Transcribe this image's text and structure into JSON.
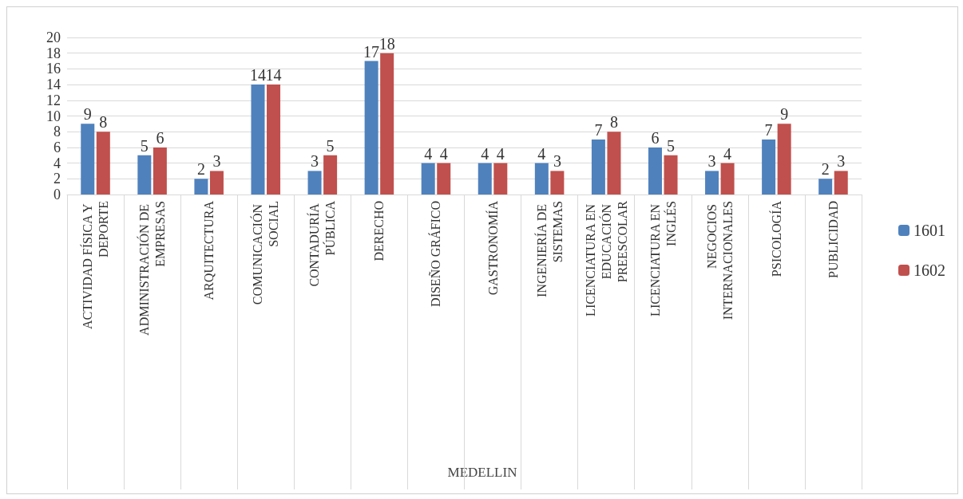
{
  "chart_data": {
    "type": "bar",
    "annotations": [
      "MEDELLIN"
    ],
    "categories": [
      "ACTIVIDAD FÍSICA Y DEPORTE",
      "ADMINISTRACIÓN DE EMPRESAS",
      "ARQUITECTURA",
      "COMUNICACIÓN SOCIAL",
      "CONTADURÍA PÚBLICA",
      "DERECHO",
      "DISEÑO GRÁFICO",
      "GASTRONOMÍA",
      "INGENIERÍA DE SISTEMAS",
      "LICENCIATURA EN EDUCACIÓN PREESCOLAR",
      "LICENCIATURA EN INGLÉS",
      "NEGOCIOS INTERNACIONALES",
      "PSICOLOGÍA",
      "PUBLICIDAD"
    ],
    "series": [
      {
        "name": "1601",
        "color": "#4f81bd",
        "values": [
          9,
          5,
          2,
          14,
          3,
          17,
          4,
          4,
          4,
          7,
          6,
          3,
          7,
          2
        ]
      },
      {
        "name": "1602",
        "color": "#c0504d",
        "values": [
          8,
          6,
          3,
          14,
          5,
          18,
          4,
          4,
          3,
          8,
          5,
          4,
          9,
          3
        ]
      }
    ],
    "ylim": [
      0,
      20
    ],
    "yticks": [
      0,
      2,
      4,
      6,
      8,
      10,
      12,
      14,
      16,
      18,
      20
    ],
    "grid": "y",
    "legend": "right",
    "data_labels": true
  }
}
